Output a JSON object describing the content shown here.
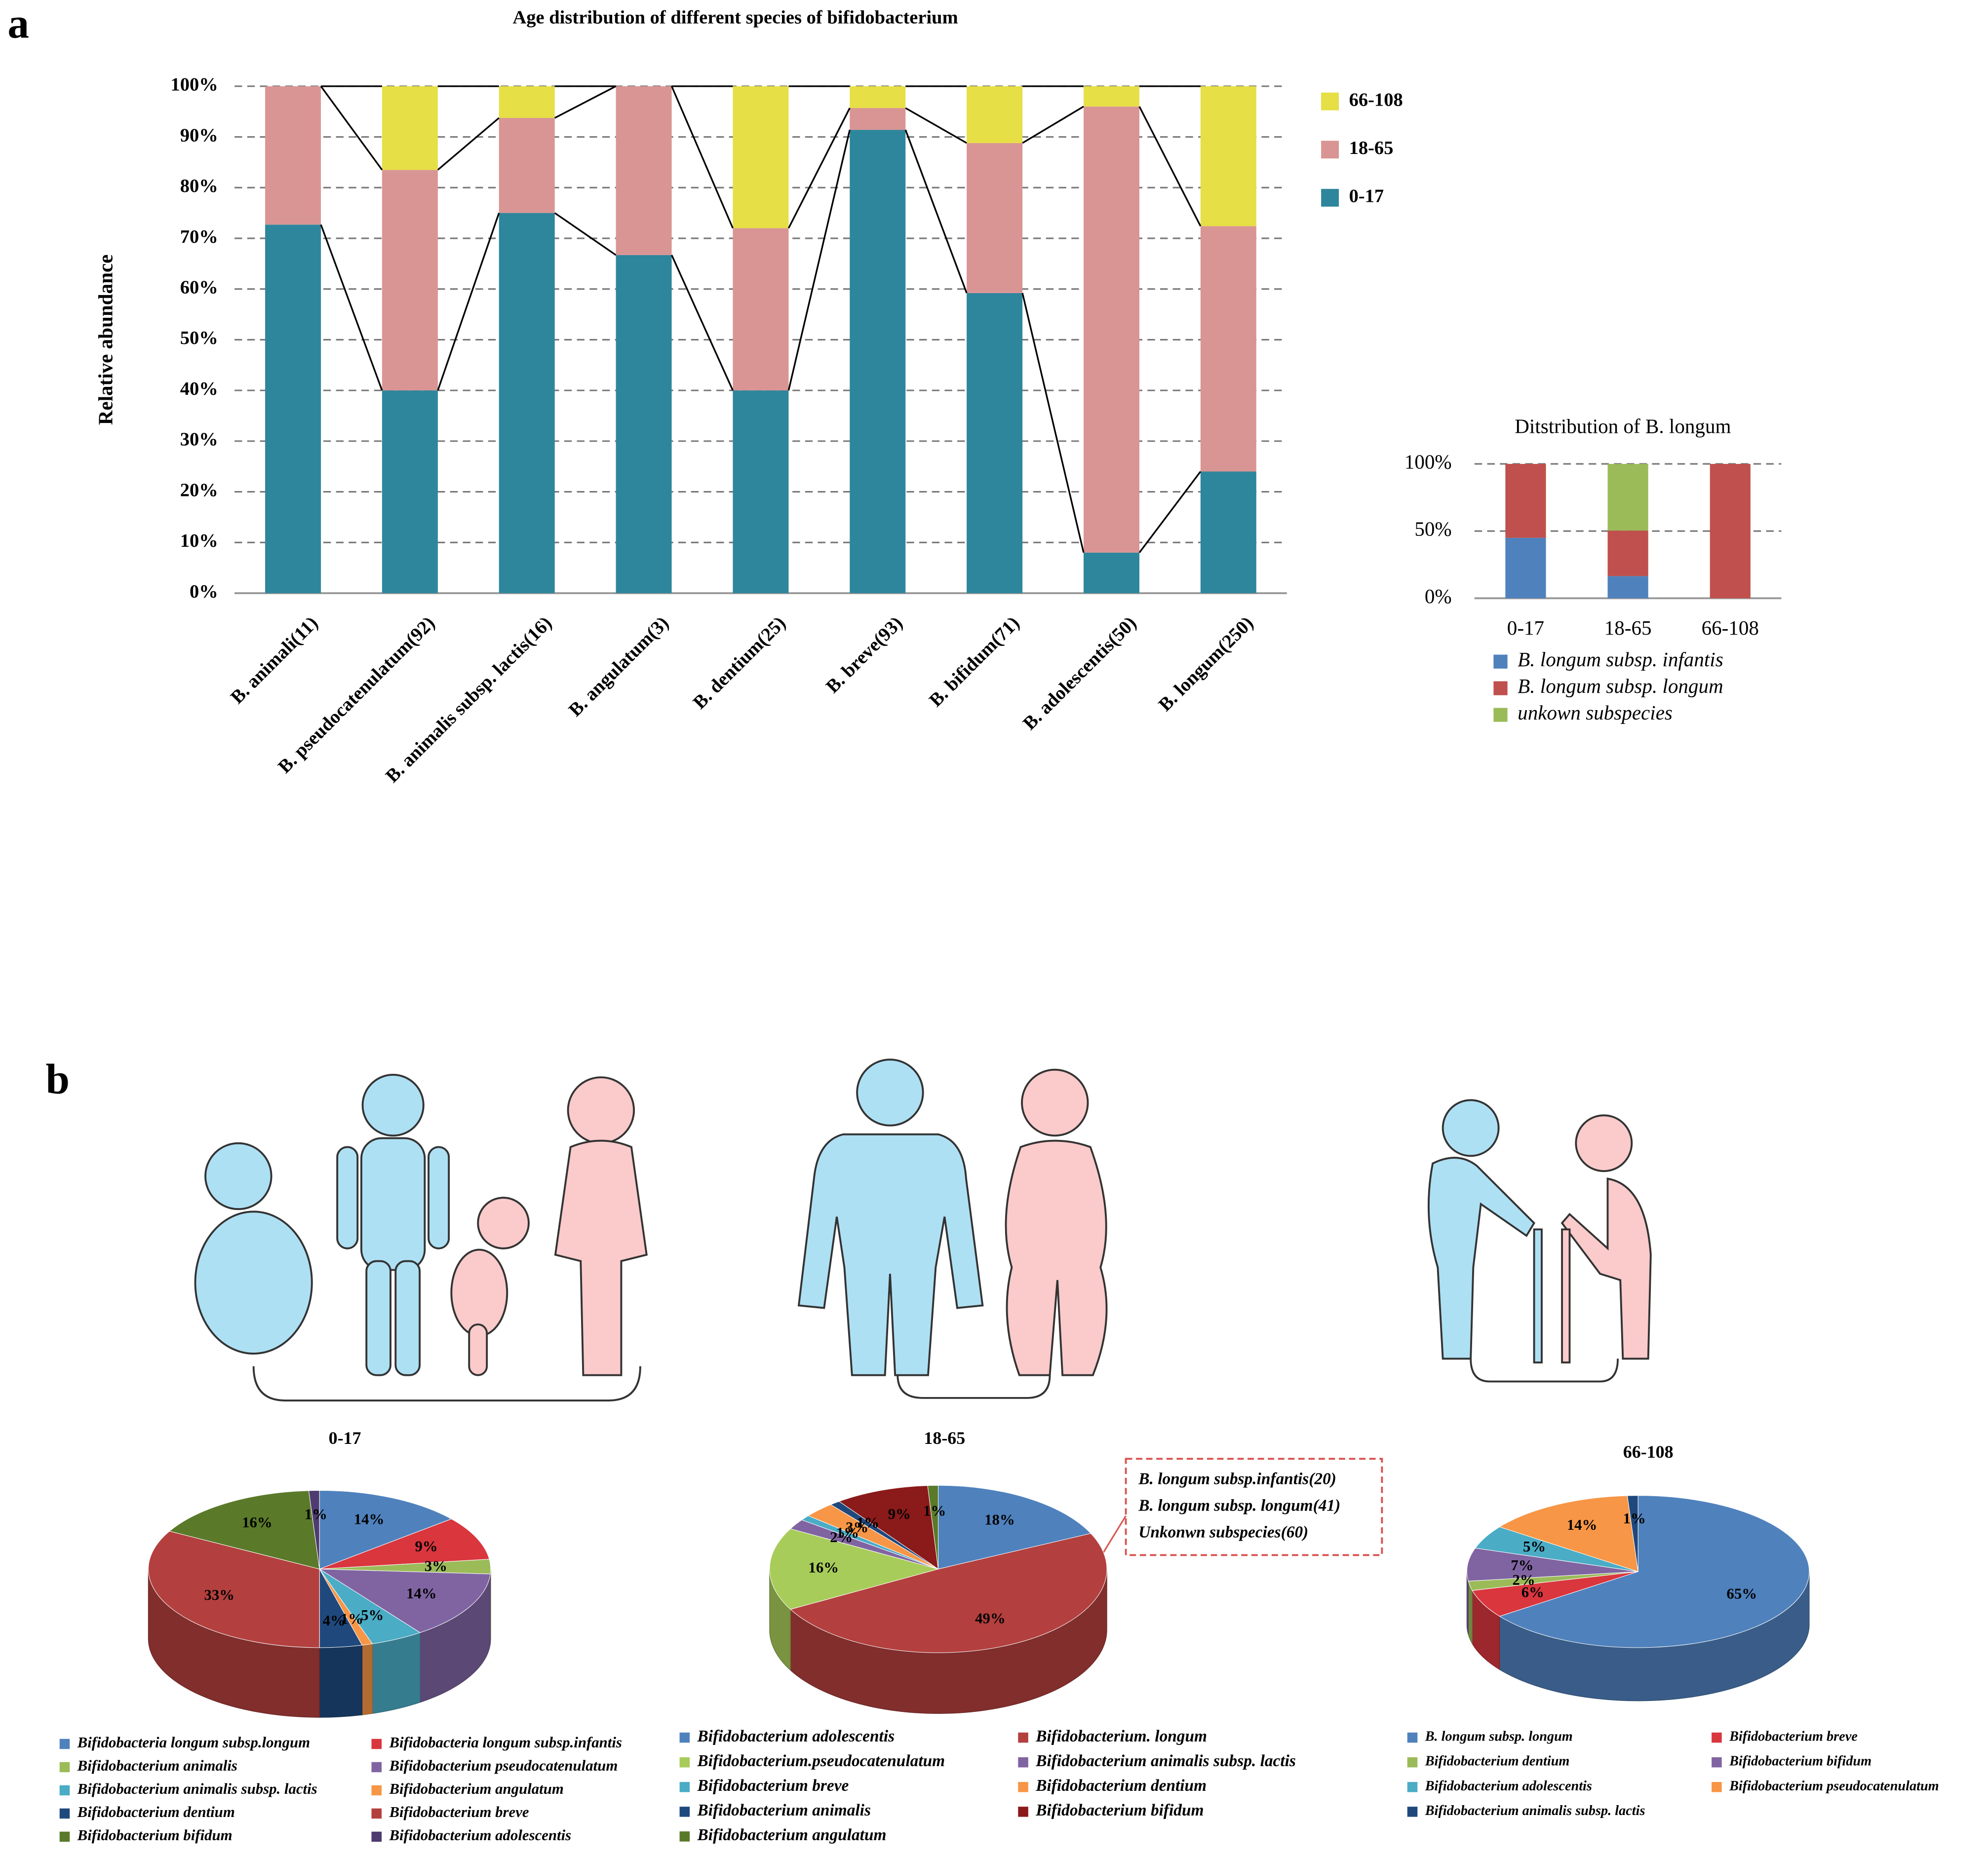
{
  "panel_labels": [
    "a",
    "b"
  ],
  "chart_data": [
    {
      "type": "bar",
      "stacked": true,
      "title": "Age distribution of different species of bifidobacterium",
      "ylabel": "Relative abundance",
      "categories": [
        "B. animali(11)",
        "B. pseudocatenulatum(92)",
        "B. animalis subsp. lactis(16)",
        "B. angulatum(3)",
        "B. dentium(25)",
        "B. breve(93)",
        "B. bifidum(71)",
        "B. adolescentis(50)",
        "B. longum(250)"
      ],
      "series": [
        {
          "name": "0-17",
          "color": "#2e869c",
          "values": [
            72.7,
            40,
            75,
            66.7,
            40,
            91.4,
            59.2,
            8,
            24
          ]
        },
        {
          "name": "18-65",
          "color": "#d99594",
          "values": [
            27.3,
            43.5,
            18.75,
            33.3,
            32,
            4.3,
            29.6,
            88,
            48.4
          ]
        },
        {
          "name": "66-108",
          "color": "#e6df45",
          "values": [
            0,
            16.5,
            6.25,
            0,
            28,
            4.3,
            11.2,
            4,
            27.6
          ]
        }
      ],
      "ylim": [
        0,
        100
      ],
      "yticks": [
        {
          "value": 0,
          "label": "0%"
        },
        {
          "value": 10,
          "label": "10%"
        },
        {
          "value": 20,
          "label": "20%"
        },
        {
          "value": 30,
          "label": "30%"
        },
        {
          "value": 40,
          "label": "40%"
        },
        {
          "value": 50,
          "label": "50%"
        },
        {
          "value": 60,
          "label": "60%"
        },
        {
          "value": 70,
          "label": "70%"
        },
        {
          "value": 80,
          "label": "80%"
        },
        {
          "value": 90,
          "label": "90%"
        },
        {
          "value": 100,
          "label": "100%"
        }
      ],
      "grid": true,
      "legend": "right"
    },
    {
      "type": "bar",
      "stacked": true,
      "title": "Ditstribution of B. longum",
      "categories": [
        "0-17",
        "18-65",
        "66-108"
      ],
      "series": [
        {
          "name": "B. longum subsp. infantis",
          "color": "#4f81bd",
          "values": [
            45,
            16.5,
            0
          ]
        },
        {
          "name": "B. longum subsp. longum",
          "color": "#c0504d",
          "values": [
            55,
            33.9,
            100
          ]
        },
        {
          "name": "unkown subspecies",
          "color": "#9bbb59",
          "values": [
            0,
            49.6,
            0
          ]
        }
      ],
      "ylim": [
        0,
        100
      ],
      "yticks": [
        {
          "value": 0,
          "label": "0%"
        },
        {
          "value": 50,
          "label": "50%"
        },
        {
          "value": 100,
          "label": "100%"
        }
      ],
      "grid": true,
      "legend": "bottom"
    },
    {
      "type": "pie",
      "title": "0-17",
      "categories": [
        "Bifidobacteria longum subsp.longum",
        "Bifidobacteria longum subsp.infantis",
        "Bifidobacterium animalis",
        "Bifidobacterium pseudocatenulatum",
        "Bifidobacterium animalis subsp. lactis",
        "Bifidobacterium angulatum",
        "Bifidobacterium dentium",
        "Bifidobacterium breve",
        "Bifidobacterium bifidum",
        "Bifidobacterium adolescentis"
      ],
      "values": [
        14,
        9,
        3,
        14,
        5,
        1,
        4,
        33,
        16,
        1
      ],
      "value_labels": [
        "14%",
        "9%",
        "3%",
        "14%",
        "5%",
        "1%",
        "4%",
        "33%",
        "16%",
        "1%"
      ],
      "colors": [
        "#4f81bd",
        "#d9363e",
        "#9bbb59",
        "#8064a2",
        "#4bacc6",
        "#f79646",
        "#1f497d",
        "#b3403e",
        "#5a7a2a",
        "#4e3b70"
      ],
      "legend": "bottom"
    },
    {
      "type": "pie",
      "title": "18-65",
      "categories": [
        "Bifidobacterium adolescentis",
        "Bifidobacterium. longum",
        "Bifidobacterium.pseudocatenulatum",
        "Bifidobacterium animalis subsp. lactis",
        "Bifidobacterium breve",
        "Bifidobacterium dentium",
        "Bifidobacterium animalis",
        "Bifidobacterium bifidum",
        "Bifidobacterium angulatum"
      ],
      "values": [
        18,
        49,
        16,
        2,
        1,
        3,
        1,
        9,
        1
      ],
      "value_labels": [
        "18%",
        "49%",
        "16%",
        "2%",
        "1%",
        "3%",
        "1%",
        "9%",
        "1%"
      ],
      "colors": [
        "#4f81bd",
        "#b3403e",
        "#a8cc5a",
        "#8064a2",
        "#4bacc6",
        "#f79646",
        "#1f497d",
        "#8b1a1a",
        "#5a7a2a"
      ],
      "annotations": [
        "B. longum subsp.infantis(20)",
        "B. longum subsp. longum(41)",
        "Unkonwn subspecies(60)"
      ],
      "legend": "bottom"
    },
    {
      "type": "pie",
      "title": "66-108",
      "categories": [
        "B. longum subsp. longum",
        "Bifidobacterium breve",
        "Bifidobacterium dentium",
        "Bifidobacterium bifidum",
        "Bifidobacterium adolescentis",
        "Bifidobacterium pseudocatenulatum",
        "Bifidobacterium animalis subsp. lactis"
      ],
      "values": [
        65,
        6,
        2,
        7,
        5,
        14,
        1
      ],
      "value_labels": [
        "65%",
        "6%",
        "2%",
        "7%",
        "5%",
        "14%",
        "1%"
      ],
      "colors": [
        "#4f81bd",
        "#d9363e",
        "#9bbb59",
        "#8064a2",
        "#4bacc6",
        "#f79646",
        "#1f497d"
      ],
      "legend": "bottom"
    }
  ]
}
